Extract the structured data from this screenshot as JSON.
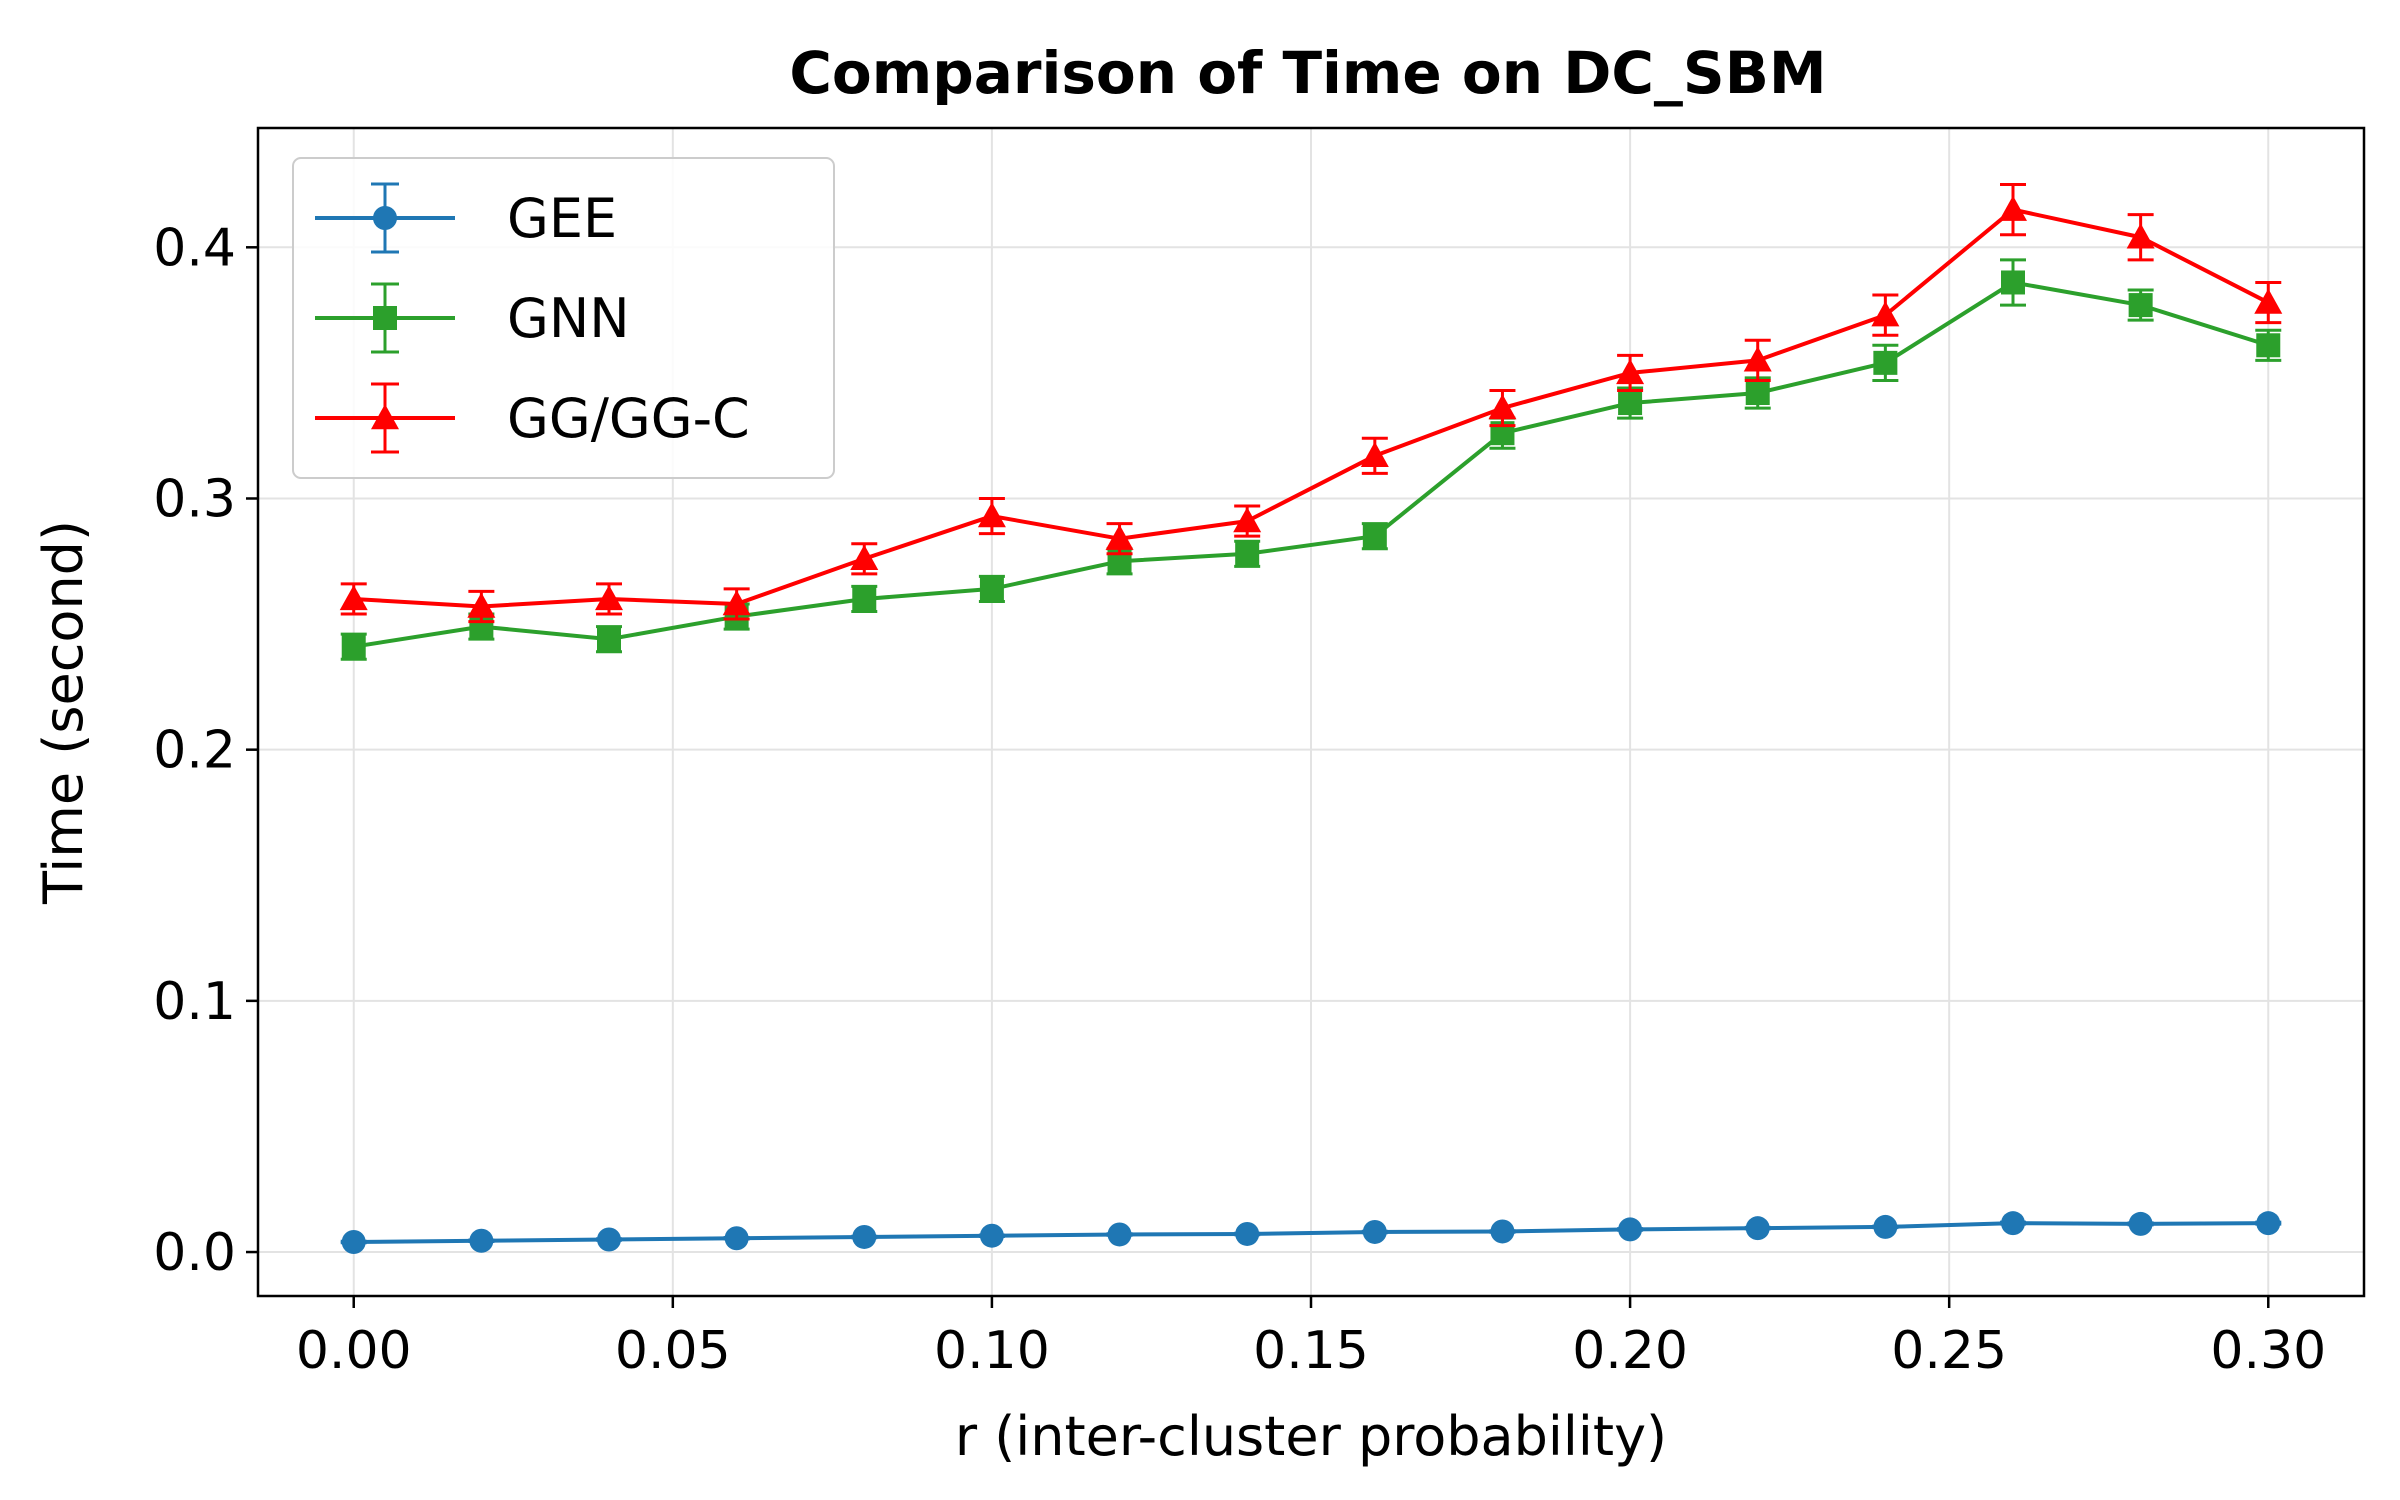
{
  "chart_data": {
    "type": "line",
    "title": "Comparison of Time on DC_SBM",
    "xlabel": "r (inter-cluster probability)",
    "ylabel": "Time (second)",
    "x": [
      0.0,
      0.02,
      0.04,
      0.06,
      0.08,
      0.1,
      0.12,
      0.14,
      0.16,
      0.18,
      0.2,
      0.22,
      0.24,
      0.26,
      0.28,
      0.3
    ],
    "xlim": [
      -0.015,
      0.315
    ],
    "ylim": [
      -0.0175,
      0.4475
    ],
    "xticks": [
      0.0,
      0.05,
      0.1,
      0.15,
      0.2,
      0.25,
      0.3
    ],
    "xtick_labels": [
      "0.00",
      "0.05",
      "0.10",
      "0.15",
      "0.20",
      "0.25",
      "0.30"
    ],
    "yticks": [
      0.0,
      0.1,
      0.2,
      0.3,
      0.4
    ],
    "ytick_labels": [
      "0.0",
      "0.1",
      "0.2",
      "0.3",
      "0.4"
    ],
    "grid": true,
    "legend_position": "top-left",
    "series": [
      {
        "name": "GEE",
        "color": "#1f77b4",
        "marker": "circle",
        "values": [
          0.004,
          0.0045,
          0.005,
          0.0055,
          0.006,
          0.0065,
          0.007,
          0.0072,
          0.008,
          0.0082,
          0.009,
          0.0095,
          0.01,
          0.0115,
          0.0112,
          0.0115
        ],
        "errors": [
          0.0003,
          0.0003,
          0.0003,
          0.0003,
          0.0003,
          0.0003,
          0.0003,
          0.0003,
          0.0003,
          0.0003,
          0.0003,
          0.0003,
          0.0003,
          0.0004,
          0.0004,
          0.0004
        ]
      },
      {
        "name": "GNN",
        "color": "#2ca02c",
        "marker": "square",
        "values": [
          0.241,
          0.249,
          0.244,
          0.253,
          0.26,
          0.264,
          0.275,
          0.278,
          0.285,
          0.326,
          0.338,
          0.342,
          0.354,
          0.386,
          0.377,
          0.361
        ],
        "errors": [
          0.005,
          0.005,
          0.005,
          0.005,
          0.005,
          0.005,
          0.005,
          0.005,
          0.005,
          0.006,
          0.006,
          0.006,
          0.007,
          0.009,
          0.006,
          0.006
        ]
      },
      {
        "name": "GG/GG-C",
        "color": "#ff0000",
        "marker": "triangle",
        "values": [
          0.26,
          0.257,
          0.26,
          0.258,
          0.276,
          0.293,
          0.284,
          0.291,
          0.317,
          0.336,
          0.35,
          0.355,
          0.373,
          0.415,
          0.404,
          0.378
        ],
        "errors": [
          0.006,
          0.006,
          0.006,
          0.006,
          0.006,
          0.007,
          0.006,
          0.006,
          0.007,
          0.007,
          0.007,
          0.008,
          0.008,
          0.01,
          0.009,
          0.008
        ]
      }
    ]
  }
}
